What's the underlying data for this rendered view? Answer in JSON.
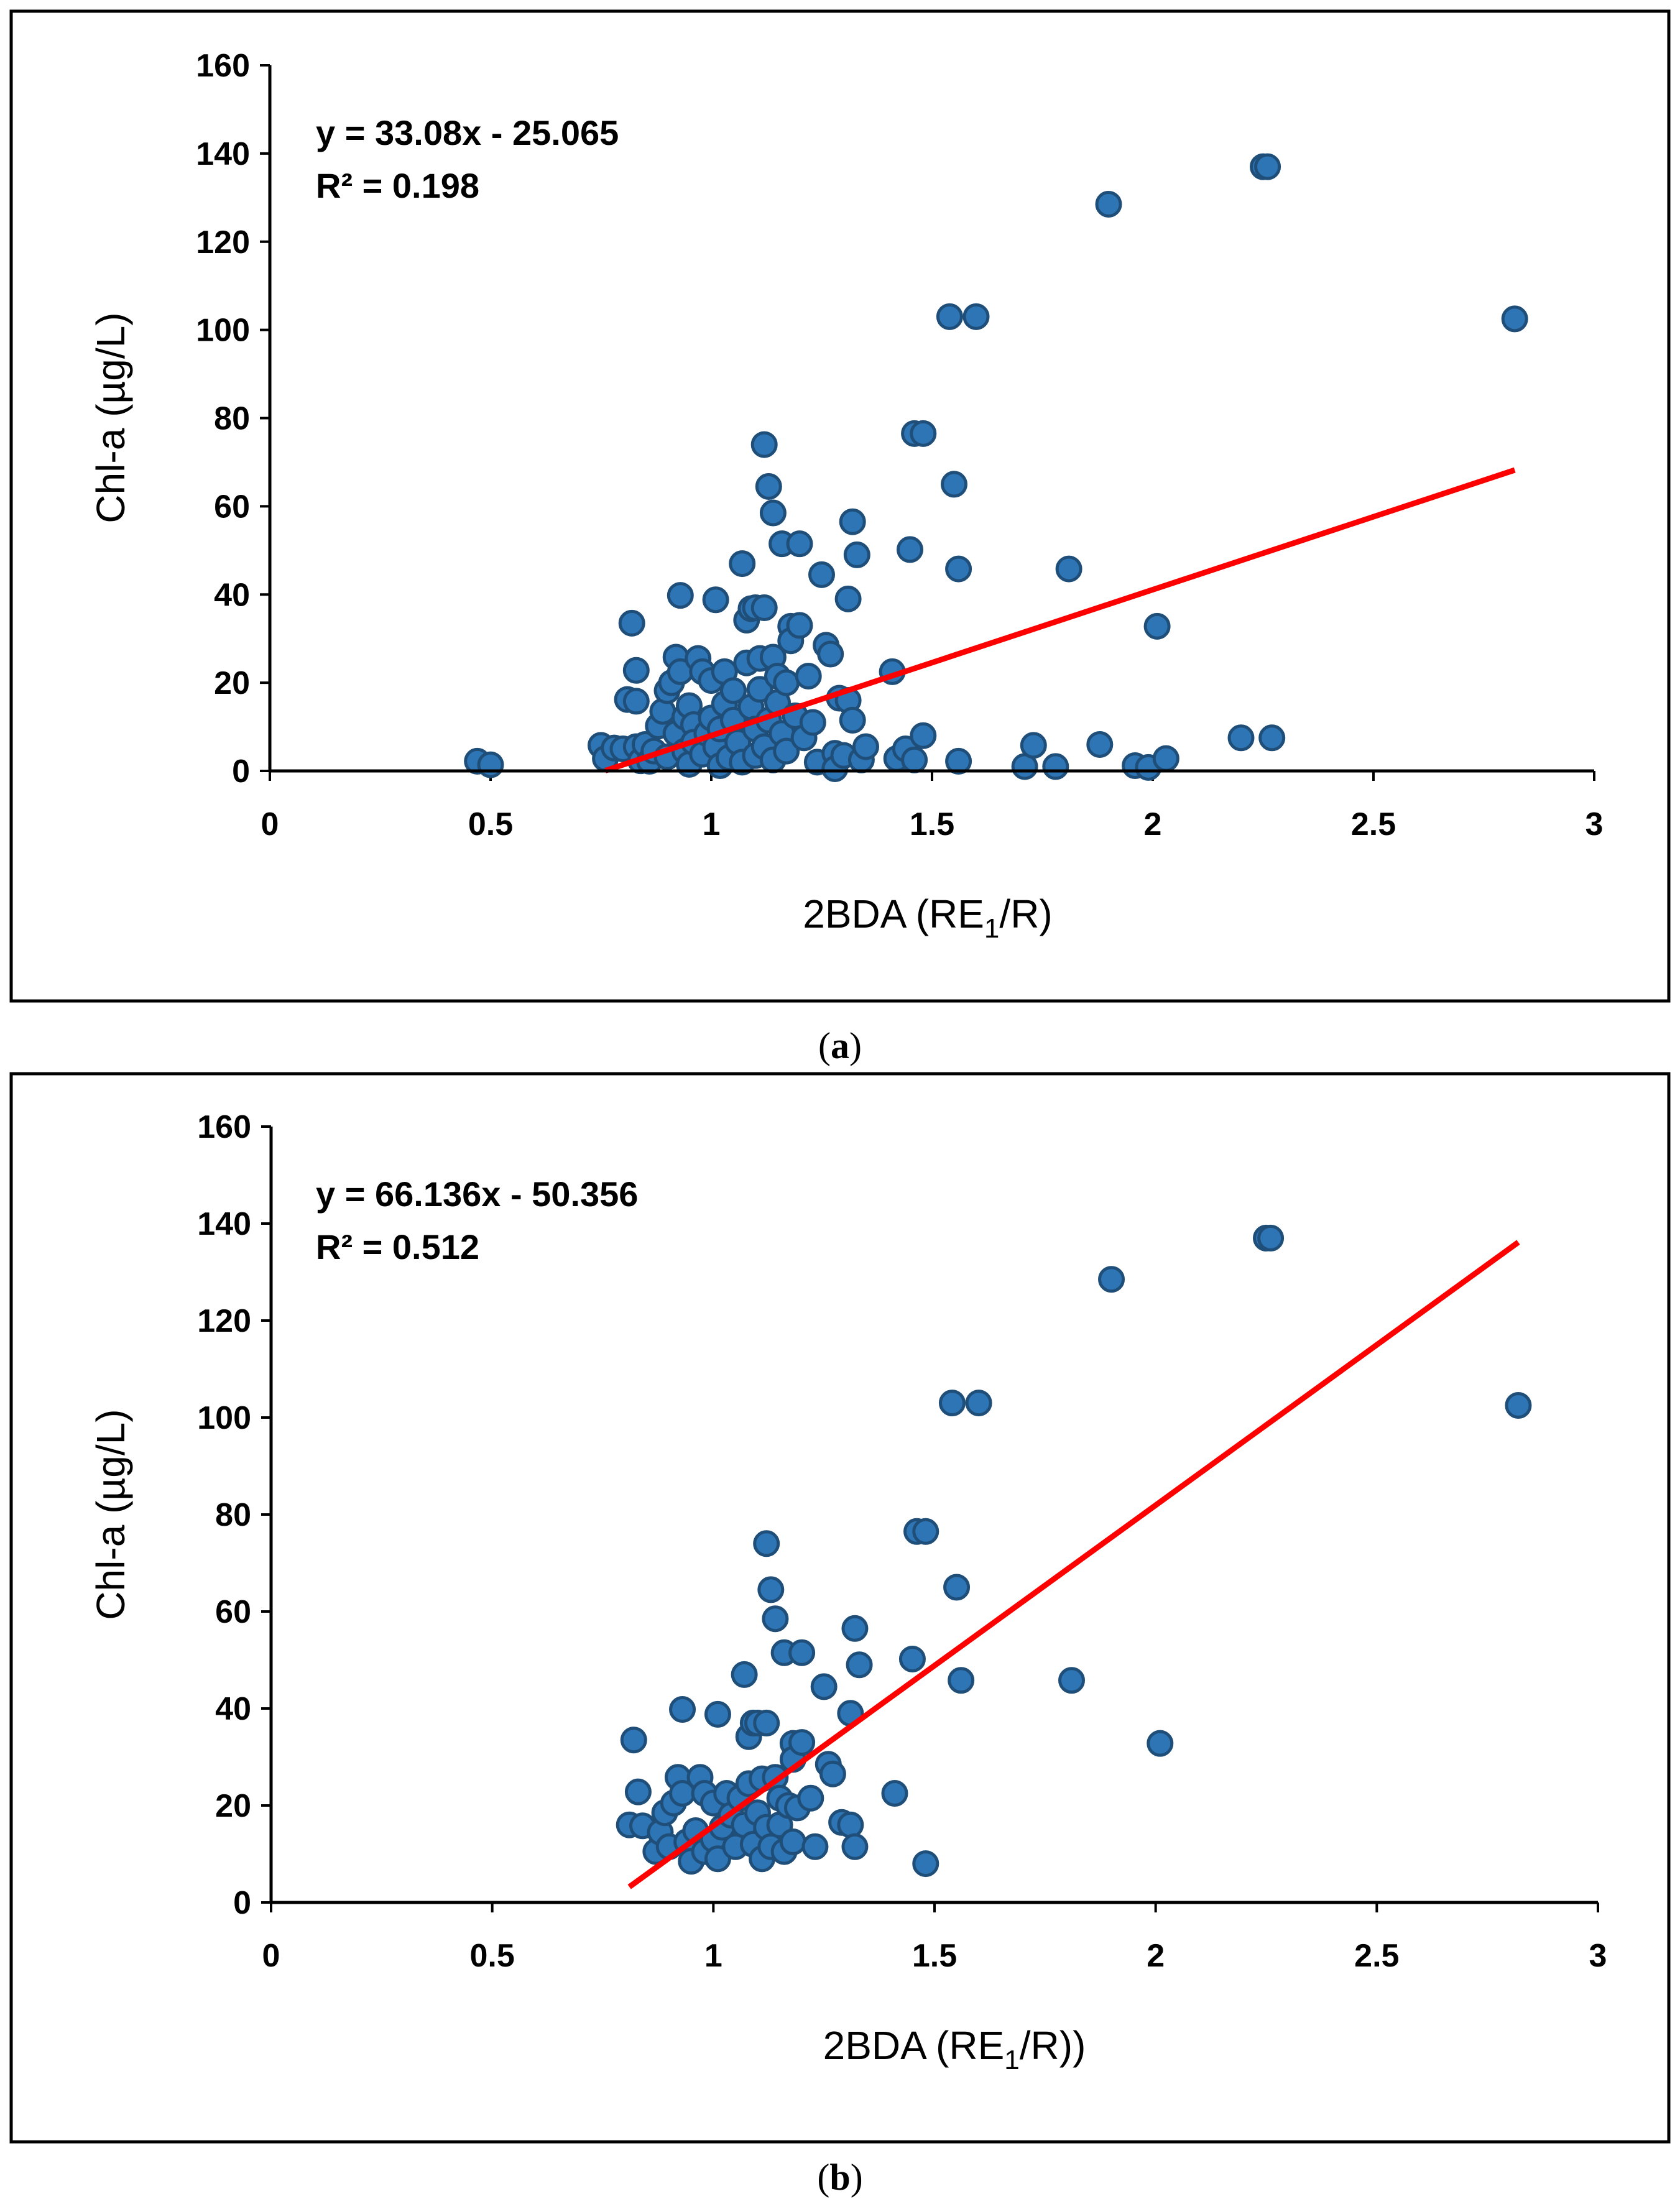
{
  "colors": {
    "points": "#2e75b6",
    "point_edge": "#1f4e79",
    "fit_line": "#ff0000"
  },
  "panels": [
    {
      "caption": "(a)",
      "caption_letter": "a",
      "annotation": {
        "equation": "y = 33.08x - 25.065",
        "r2": "R² = 0.198"
      },
      "xlabel_main": "2BDA (RE",
      "xlabel_sub": "1",
      "xlabel_tail": "/R)",
      "ylabel": "Chl-a (µg/L)",
      "x_ticks": [
        "0",
        "0.5",
        "1",
        "1.5",
        "2",
        "2.5",
        "3"
      ],
      "y_ticks": [
        "0",
        "20",
        "40",
        "60",
        "80",
        "100",
        "120",
        "140",
        "160"
      ]
    },
    {
      "caption": "(b)",
      "caption_letter": "b",
      "annotation": {
        "equation": "y = 66.136x - 50.356",
        "r2": "R² = 0.512"
      },
      "xlabel_main": "2BDA (RE",
      "xlabel_sub": "1",
      "xlabel_tail": "/R))",
      "ylabel": "Chl-a (µg/L)",
      "x_ticks": [
        "0",
        "0.5",
        "1",
        "1.5",
        "2",
        "2.5",
        "3"
      ],
      "y_ticks": [
        "0",
        "20",
        "40",
        "60",
        "80",
        "100",
        "120",
        "140",
        "160"
      ]
    }
  ],
  "chart_data": [
    {
      "type": "scatter",
      "xlabel": "2BDA (RE1/R)",
      "ylabel": "Chl-a (µg/L)",
      "xlim": [
        0,
        3
      ],
      "ylim": [
        0,
        160
      ],
      "grid": false,
      "trendline": {
        "slope": 33.08,
        "intercept": -25.065,
        "x_range": [
          0.76,
          2.82
        ]
      },
      "series": [
        {
          "points": [
            [
              0.47,
              2.2
            ],
            [
              0.5,
              1.4
            ],
            [
              0.75,
              5.8
            ],
            [
              0.76,
              2.8
            ],
            [
              0.78,
              5.2
            ],
            [
              0.8,
              5.0
            ],
            [
              0.81,
              16.2
            ],
            [
              0.82,
              33.5
            ],
            [
              0.83,
              22.8
            ],
            [
              0.83,
              15.8
            ],
            [
              0.83,
              5.5
            ],
            [
              0.84,
              2.3
            ],
            [
              0.85,
              6.0
            ],
            [
              0.86,
              2.2
            ],
            [
              0.87,
              4.5
            ],
            [
              0.88,
              10.2
            ],
            [
              0.89,
              13.5
            ],
            [
              0.9,
              18.2
            ],
            [
              0.9,
              3.2
            ],
            [
              0.91,
              20.0
            ],
            [
              0.92,
              25.8
            ],
            [
              0.92,
              8.5
            ],
            [
              0.93,
              39.8
            ],
            [
              0.93,
              22.5
            ],
            [
              0.94,
              12.2
            ],
            [
              0.94,
              4.5
            ],
            [
              0.95,
              1.5
            ],
            [
              0.95,
              14.8
            ],
            [
              0.96,
              10.5
            ],
            [
              0.96,
              6.5
            ],
            [
              0.97,
              25.5
            ],
            [
              0.98,
              22.5
            ],
            [
              0.98,
              3.8
            ],
            [
              0.99,
              8.5
            ],
            [
              1.0,
              20.5
            ],
            [
              1.0,
              12.0
            ],
            [
              1.01,
              38.8
            ],
            [
              1.01,
              5.5
            ],
            [
              1.02,
              1.2
            ],
            [
              1.02,
              9.5
            ],
            [
              1.03,
              22.5
            ],
            [
              1.03,
              15.2
            ],
            [
              1.04,
              3.0
            ],
            [
              1.05,
              18.2
            ],
            [
              1.05,
              11.5
            ],
            [
              1.06,
              6.5
            ],
            [
              1.07,
              47.0
            ],
            [
              1.07,
              2.0
            ],
            [
              1.08,
              34.2
            ],
            [
              1.08,
              24.5
            ],
            [
              1.09,
              36.8
            ],
            [
              1.09,
              14.5
            ],
            [
              1.1,
              37.0
            ],
            [
              1.1,
              9.5
            ],
            [
              1.1,
              3.5
            ],
            [
              1.11,
              25.5
            ],
            [
              1.11,
              18.5
            ],
            [
              1.12,
              74.0
            ],
            [
              1.12,
              37.0
            ],
            [
              1.12,
              5.5
            ],
            [
              1.13,
              64.5
            ],
            [
              1.13,
              11.5
            ],
            [
              1.14,
              58.5
            ],
            [
              1.14,
              25.8
            ],
            [
              1.14,
              2.5
            ],
            [
              1.15,
              21.5
            ],
            [
              1.15,
              15.5
            ],
            [
              1.16,
              8.5
            ],
            [
              1.16,
              51.5
            ],
            [
              1.17,
              20.0
            ],
            [
              1.17,
              4.5
            ],
            [
              1.18,
              32.8
            ],
            [
              1.18,
              29.5
            ],
            [
              1.19,
              12.5
            ],
            [
              1.2,
              51.5
            ],
            [
              1.2,
              33.0
            ],
            [
              1.21,
              7.5
            ],
            [
              1.22,
              21.5
            ],
            [
              1.23,
              11.0
            ],
            [
              1.24,
              2.0
            ],
            [
              1.25,
              44.5
            ],
            [
              1.26,
              28.5
            ],
            [
              1.27,
              26.5
            ],
            [
              1.28,
              4.0
            ],
            [
              1.28,
              0.5
            ],
            [
              1.29,
              16.5
            ],
            [
              1.3,
              3.5
            ],
            [
              1.31,
              39.0
            ],
            [
              1.31,
              16.0
            ],
            [
              1.32,
              56.5
            ],
            [
              1.32,
              11.5
            ],
            [
              1.33,
              49.0
            ],
            [
              1.34,
              2.5
            ],
            [
              1.35,
              5.5
            ],
            [
              1.41,
              22.5
            ],
            [
              1.42,
              2.8
            ],
            [
              1.44,
              5.0
            ],
            [
              1.45,
              50.2
            ],
            [
              1.46,
              2.5
            ],
            [
              1.46,
              76.5
            ],
            [
              1.48,
              76.5
            ],
            [
              1.48,
              8.0
            ],
            [
              1.54,
              103.0
            ],
            [
              1.55,
              65.0
            ],
            [
              1.56,
              45.8
            ],
            [
              1.56,
              2.2
            ],
            [
              1.6,
              103.0
            ],
            [
              1.71,
              1.0
            ],
            [
              1.73,
              5.8
            ],
            [
              1.78,
              1.0
            ],
            [
              1.81,
              45.8
            ],
            [
              1.88,
              6.0
            ],
            [
              1.9,
              128.5
            ],
            [
              1.96,
              1.2
            ],
            [
              1.99,
              0.8
            ],
            [
              2.01,
              32.8
            ],
            [
              2.03,
              2.8
            ],
            [
              2.2,
              7.5
            ],
            [
              2.25,
              137.0
            ],
            [
              2.26,
              137.0
            ],
            [
              2.27,
              7.5
            ],
            [
              2.82,
              102.5
            ]
          ]
        }
      ]
    },
    {
      "type": "scatter",
      "xlabel": "2BDA (RE1/R))",
      "ylabel": "Chl-a (µg/L)",
      "xlim": [
        0,
        3
      ],
      "ylim": [
        0,
        160
      ],
      "grid": false,
      "trendline": {
        "slope": 66.136,
        "intercept": -50.356,
        "x_range": [
          0.81,
          2.82
        ]
      },
      "series": [
        {
          "points": [
            [
              0.81,
              16.0
            ],
            [
              0.82,
              33.5
            ],
            [
              0.83,
              22.8
            ],
            [
              0.84,
              15.8
            ],
            [
              0.87,
              10.5
            ],
            [
              0.88,
              14.5
            ],
            [
              0.89,
              18.5
            ],
            [
              0.9,
              11.5
            ],
            [
              0.91,
              20.5
            ],
            [
              0.92,
              25.8
            ],
            [
              0.93,
              39.8
            ],
            [
              0.93,
              22.5
            ],
            [
              0.94,
              12.5
            ],
            [
              0.95,
              8.5
            ],
            [
              0.96,
              14.8
            ],
            [
              0.97,
              25.8
            ],
            [
              0.98,
              22.5
            ],
            [
              0.98,
              10.5
            ],
            [
              1.0,
              20.5
            ],
            [
              1.0,
              13.0
            ],
            [
              1.01,
              38.8
            ],
            [
              1.01,
              9.0
            ],
            [
              1.02,
              15.5
            ],
            [
              1.03,
              22.5
            ],
            [
              1.04,
              18.0
            ],
            [
              1.05,
              11.5
            ],
            [
              1.06,
              21.5
            ],
            [
              1.07,
              47.0
            ],
            [
              1.07,
              16.0
            ],
            [
              1.08,
              34.2
            ],
            [
              1.08,
              24.5
            ],
            [
              1.09,
              37.0
            ],
            [
              1.09,
              12.0
            ],
            [
              1.1,
              37.0
            ],
            [
              1.1,
              18.5
            ],
            [
              1.11,
              25.5
            ],
            [
              1.11,
              9.0
            ],
            [
              1.12,
              74.0
            ],
            [
              1.12,
              37.0
            ],
            [
              1.12,
              15.5
            ],
            [
              1.13,
              64.5
            ],
            [
              1.13,
              11.5
            ],
            [
              1.14,
              58.5
            ],
            [
              1.14,
              25.8
            ],
            [
              1.15,
              21.5
            ],
            [
              1.15,
              16.0
            ],
            [
              1.16,
              51.5
            ],
            [
              1.16,
              10.5
            ],
            [
              1.17,
              20.0
            ],
            [
              1.18,
              32.8
            ],
            [
              1.18,
              29.5
            ],
            [
              1.18,
              12.5
            ],
            [
              1.19,
              19.5
            ],
            [
              1.2,
              51.5
            ],
            [
              1.2,
              33.0
            ],
            [
              1.22,
              21.5
            ],
            [
              1.23,
              11.5
            ],
            [
              1.25,
              44.5
            ],
            [
              1.26,
              28.5
            ],
            [
              1.27,
              26.5
            ],
            [
              1.29,
              16.5
            ],
            [
              1.31,
              39.0
            ],
            [
              1.31,
              16.0
            ],
            [
              1.32,
              56.5
            ],
            [
              1.32,
              11.5
            ],
            [
              1.33,
              49.0
            ],
            [
              1.41,
              22.5
            ],
            [
              1.45,
              50.2
            ],
            [
              1.46,
              76.5
            ],
            [
              1.48,
              76.5
            ],
            [
              1.48,
              8.0
            ],
            [
              1.54,
              103.0
            ],
            [
              1.55,
              65.0
            ],
            [
              1.56,
              45.8
            ],
            [
              1.6,
              103.0
            ],
            [
              1.81,
              45.8
            ],
            [
              1.9,
              128.5
            ],
            [
              2.01,
              32.8
            ],
            [
              2.25,
              137.0
            ],
            [
              2.26,
              137.0
            ],
            [
              2.82,
              102.5
            ]
          ]
        }
      ]
    }
  ]
}
